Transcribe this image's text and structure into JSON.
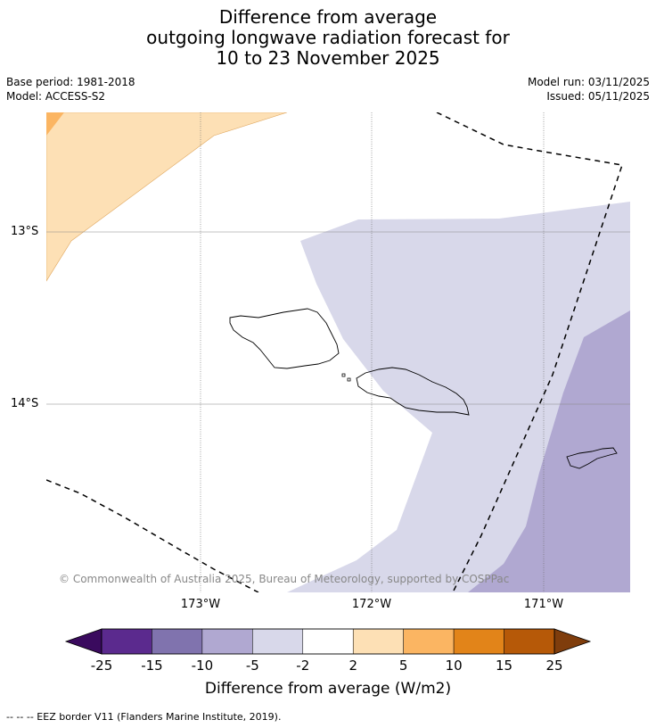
{
  "title": {
    "line1": "Difference from average",
    "line2": "outgoing longwave radiation forecast for",
    "line3": "10 to 23 November 2025"
  },
  "meta": {
    "base_period": "Base period: 1981-2018",
    "model": "Model: ACCESS-S2",
    "model_run": "Model run: 03/11/2025",
    "issued": "Issued: 05/11/2025"
  },
  "map": {
    "latitude_labels": [
      "13°S",
      "14°S"
    ],
    "longitude_labels": [
      "173°W",
      "172°W",
      "171°W"
    ],
    "copyright": "© Commonwealth of Australia 2025, Bureau of Meteorology, supported by COSPPac",
    "islands": [
      "Savai'i",
      "Upolu",
      "Tutuila"
    ]
  },
  "colorbar": {
    "ticks": [
      "-25",
      "-15",
      "-10",
      "-5",
      "-2",
      "2",
      "5",
      "10",
      "15",
      "25"
    ],
    "colors": [
      "#5b2a8e",
      "#8073ae",
      "#b0a8d1",
      "#d8d8ea",
      "#ffffff",
      "#fde0b5",
      "#fbb562",
      "#e28419",
      "#b65908"
    ],
    "under_color": "#3a0a5e",
    "over_color": "#7f3d0c",
    "title": "Difference from average (W/m2)"
  },
  "footnote": "-- -- -- EEZ border V11 (Flanders Marine Institute, 2019)."
}
